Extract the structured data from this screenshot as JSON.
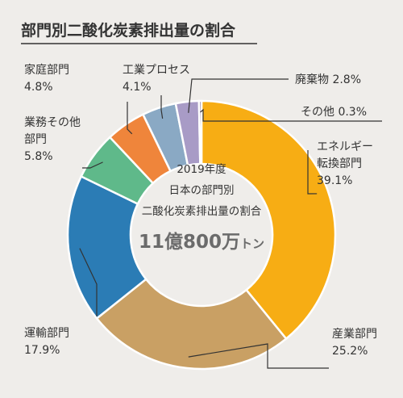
{
  "title": "部門別二酸化炭素排出量の割合",
  "center": {
    "line1": "2019年度",
    "line2": "日本の部門別",
    "line3": "二酸化炭素排出量の割合",
    "total_value": "11億800万",
    "total_unit": "トン"
  },
  "chart_data": {
    "type": "pie",
    "title": "部門別二酸化炭素排出量の割合",
    "unit": "%",
    "slices": [
      {
        "label": [
          "エネルギー",
          "転換部門"
        ],
        "value": 39.1,
        "display": "39.1%",
        "color": "#f7ad14"
      },
      {
        "label": [
          "産業部門"
        ],
        "value": 25.2,
        "display": "25.2%",
        "color": "#c9a064"
      },
      {
        "label": [
          "運輸部門"
        ],
        "value": 17.9,
        "display": "17.9%",
        "color": "#2b7cb5"
      },
      {
        "label": [
          "業務その他",
          "部門"
        ],
        "value": 5.8,
        "display": "5.8%",
        "color": "#5fb98a"
      },
      {
        "label": [
          "家庭部門"
        ],
        "value": 4.8,
        "display": "4.8%",
        "color": "#ef853b"
      },
      {
        "label": [
          "工業プロセス"
        ],
        "value": 4.1,
        "display": "4.1%",
        "color": "#8aa9c4"
      },
      {
        "label": [
          "廃棄物"
        ],
        "value": 2.8,
        "display": "2.8%",
        "color": "#a89bc6"
      },
      {
        "label": [
          "その他"
        ],
        "value": 0.3,
        "display": "0.3%",
        "color": "#6e5a8a"
      }
    ]
  }
}
